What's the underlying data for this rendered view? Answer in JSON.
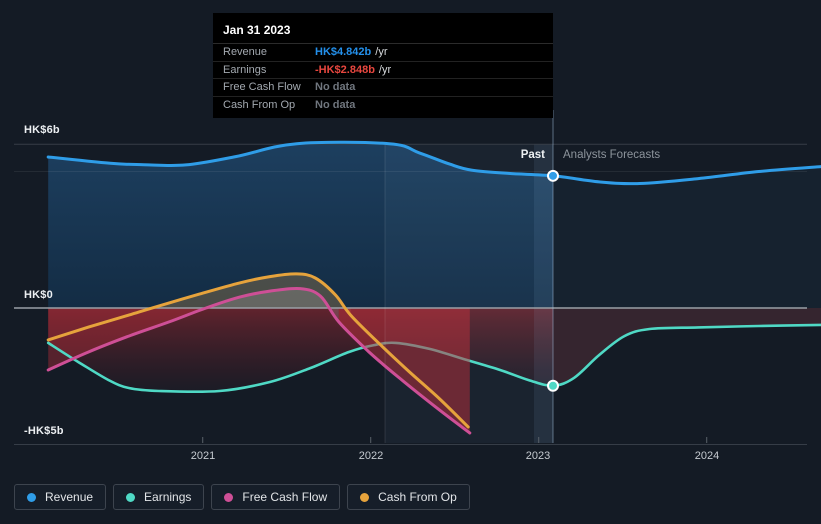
{
  "colors": {
    "background": "#141b25",
    "revenue": "#2f9de8",
    "earnings": "#4fd9c5",
    "free_cash_flow": "#ce4f96",
    "cash_from_op": "#e6a33c",
    "negative_red": "#8a2f3f",
    "tooltip_revenue_value": "#2490eb",
    "tooltip_earnings_value": "#e8473f",
    "no_data_gray": "#70767e"
  },
  "tooltip": {
    "date": "Jan 31 2023",
    "rows": [
      {
        "label": "Revenue",
        "value": "HK$4.842b",
        "unit": "/yr",
        "value_color": "#2490eb"
      },
      {
        "label": "Earnings",
        "value": "-HK$2.848b",
        "unit": "/yr",
        "value_color": "#e8473f"
      },
      {
        "label": "Free Cash Flow",
        "value": "No data",
        "unit": "",
        "value_color": "#70767e"
      },
      {
        "label": "Cash From Op",
        "value": "No data",
        "unit": "",
        "value_color": "#70767e"
      }
    ]
  },
  "regions": {
    "past": "Past",
    "forecast": "Analysts Forecasts"
  },
  "axis": {
    "y_labels": [
      {
        "text": "HK$6b",
        "value": 6
      },
      {
        "text": "HK$0",
        "value": 0
      },
      {
        "text": "-HK$5b",
        "value": -5
      }
    ],
    "x_labels": [
      {
        "text": "2021",
        "year": 2021
      },
      {
        "text": "2022",
        "year": 2022
      },
      {
        "text": "2023",
        "year": 2023
      },
      {
        "text": "2024",
        "year": 2024
      }
    ]
  },
  "legend": [
    {
      "label": "Revenue",
      "color": "#2f9de8"
    },
    {
      "label": "Earnings",
      "color": "#4fd9c5"
    },
    {
      "label": "Free Cash Flow",
      "color": "#ce4f96"
    },
    {
      "label": "Cash From Op",
      "color": "#e6a33c"
    }
  ],
  "chart_data": {
    "type": "line",
    "title": "",
    "xlabel": "",
    "ylabel": "HK$ (billions)",
    "ylim": [
      -5.2,
      6.6
    ],
    "x_unit": "decimal year (approx.)",
    "grid_values": [
      6,
      5,
      0,
      -5
    ],
    "divider_year": 2023.085,
    "divider_label_date": "Jan 31 2023",
    "hover_segment_start_year": 2022.085,
    "series": [
      {
        "name": "Revenue",
        "color": "#2f9de8",
        "width": 3,
        "points": [
          {
            "x": 2020.08,
            "y": 5.53
          },
          {
            "x": 2020.45,
            "y": 5.3
          },
          {
            "x": 2020.65,
            "y": 5.25
          },
          {
            "x": 2020.9,
            "y": 5.24
          },
          {
            "x": 2021.2,
            "y": 5.55
          },
          {
            "x": 2021.56,
            "y": 6.02
          },
          {
            "x": 2022.11,
            "y": 6.02
          },
          {
            "x": 2022.29,
            "y": 5.68
          },
          {
            "x": 2022.47,
            "y": 5.27
          },
          {
            "x": 2022.6,
            "y": 5.05
          },
          {
            "x": 2022.82,
            "y": 4.93
          },
          {
            "x": 2023.085,
            "y": 4.842
          },
          {
            "x": 2023.36,
            "y": 4.62
          },
          {
            "x": 2023.6,
            "y": 4.56
          },
          {
            "x": 2023.95,
            "y": 4.74
          },
          {
            "x": 2024.31,
            "y": 5.0
          },
          {
            "x": 2024.68,
            "y": 5.18
          }
        ]
      },
      {
        "name": "Earnings",
        "color": "#4fd9c5",
        "width": 2.6,
        "points": [
          {
            "x": 2020.08,
            "y": -1.28
          },
          {
            "x": 2020.26,
            "y": -1.98
          },
          {
            "x": 2020.44,
            "y": -2.64
          },
          {
            "x": 2020.56,
            "y": -2.93
          },
          {
            "x": 2020.74,
            "y": -3.04
          },
          {
            "x": 2021.1,
            "y": -3.04
          },
          {
            "x": 2021.4,
            "y": -2.71
          },
          {
            "x": 2021.64,
            "y": -2.2
          },
          {
            "x": 2021.87,
            "y": -1.61
          },
          {
            "x": 2022.02,
            "y": -1.36
          },
          {
            "x": 2022.15,
            "y": -1.28
          },
          {
            "x": 2022.35,
            "y": -1.5
          },
          {
            "x": 2022.57,
            "y": -1.9
          },
          {
            "x": 2022.77,
            "y": -2.27
          },
          {
            "x": 2022.94,
            "y": -2.64
          },
          {
            "x": 2023.085,
            "y": -2.848
          },
          {
            "x": 2023.21,
            "y": -2.56
          },
          {
            "x": 2023.36,
            "y": -1.72
          },
          {
            "x": 2023.51,
            "y": -1.03
          },
          {
            "x": 2023.66,
            "y": -0.77
          },
          {
            "x": 2023.95,
            "y": -0.71
          },
          {
            "x": 2024.31,
            "y": -0.66
          },
          {
            "x": 2024.68,
            "y": -0.62
          }
        ]
      },
      {
        "name": "Free Cash Flow",
        "color": "#ce4f96",
        "width": 3,
        "points": [
          {
            "x": 2020.08,
            "y": -2.27
          },
          {
            "x": 2020.32,
            "y": -1.61
          },
          {
            "x": 2020.56,
            "y": -1.03
          },
          {
            "x": 2020.8,
            "y": -0.51
          },
          {
            "x": 2021.02,
            "y": 0.0
          },
          {
            "x": 2021.22,
            "y": 0.4
          },
          {
            "x": 2021.4,
            "y": 0.62
          },
          {
            "x": 2021.58,
            "y": 0.71
          },
          {
            "x": 2021.7,
            "y": 0.44
          },
          {
            "x": 2021.81,
            "y": -0.51
          },
          {
            "x": 2021.99,
            "y": -1.61
          },
          {
            "x": 2022.17,
            "y": -2.56
          },
          {
            "x": 2022.41,
            "y": -3.74
          },
          {
            "x": 2022.59,
            "y": -4.58
          }
        ]
      },
      {
        "name": "Cash From Op",
        "color": "#e6a33c",
        "width": 3,
        "points": [
          {
            "x": 2020.08,
            "y": -1.17
          },
          {
            "x": 2020.32,
            "y": -0.7
          },
          {
            "x": 2020.56,
            "y": -0.26
          },
          {
            "x": 2020.72,
            "y": 0.04
          },
          {
            "x": 2020.98,
            "y": 0.51
          },
          {
            "x": 2021.22,
            "y": 0.92
          },
          {
            "x": 2021.4,
            "y": 1.15
          },
          {
            "x": 2021.56,
            "y": 1.25
          },
          {
            "x": 2021.67,
            "y": 1.1
          },
          {
            "x": 2021.79,
            "y": 0.48
          },
          {
            "x": 2021.88,
            "y": -0.26
          },
          {
            "x": 2022.06,
            "y": -1.36
          },
          {
            "x": 2022.23,
            "y": -2.34
          },
          {
            "x": 2022.41,
            "y": -3.33
          },
          {
            "x": 2022.58,
            "y": -4.36
          }
        ]
      }
    ],
    "markers": [
      {
        "series": "Revenue",
        "x": 2023.085,
        "y": 4.842
      },
      {
        "series": "Earnings",
        "x": 2023.085,
        "y": -2.848
      }
    ]
  }
}
